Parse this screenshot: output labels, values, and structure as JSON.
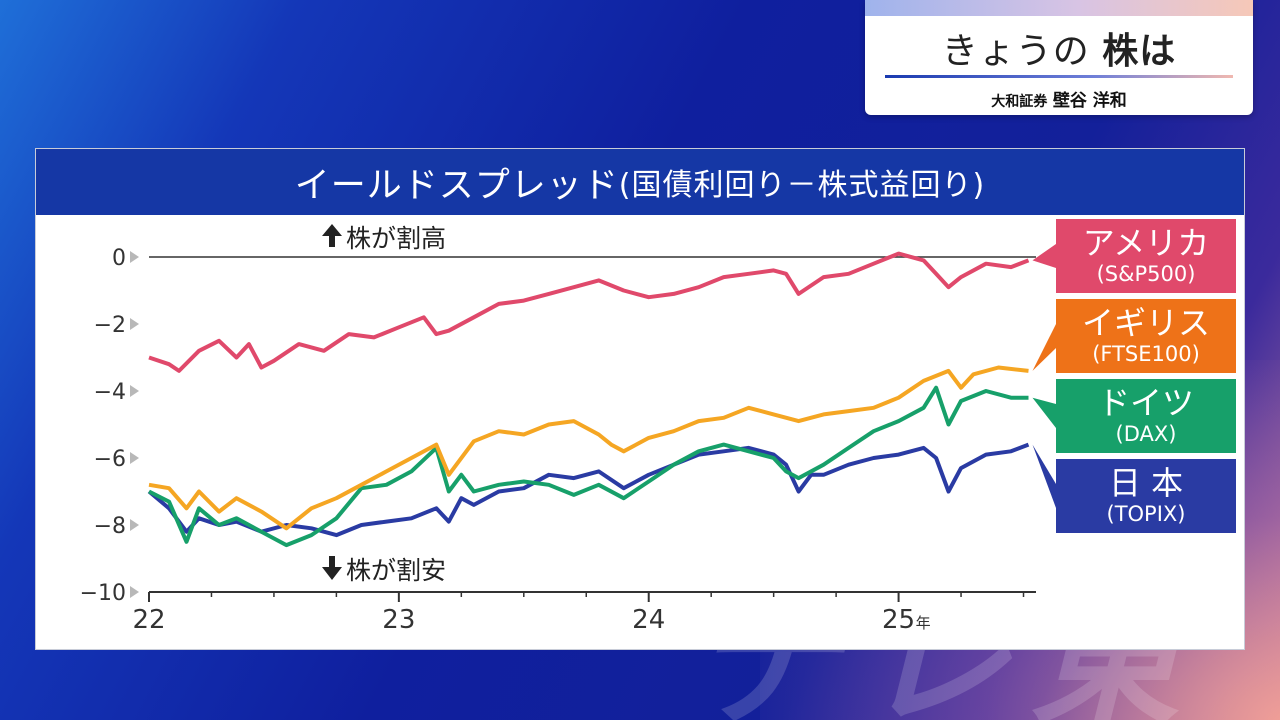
{
  "header": {
    "title_part1": "きょうの",
    "title_part2": "株は",
    "subtitle_company": "大和証券",
    "subtitle_name": "壁谷 洋和"
  },
  "panel": {
    "title": "イールドスプレッド",
    "title_paren": "(国債利回り－株式益回り)"
  },
  "watermark": "テレ東",
  "chart_data": {
    "type": "line",
    "title": "イールドスプレッド(国債利回り－株式益回り)",
    "xlabel": "年",
    "ylabel": "",
    "ylim": [
      -10,
      0
    ],
    "xlim": [
      2022.0,
      2025.55
    ],
    "yticks": [
      0,
      -2,
      -4,
      -6,
      -8,
      -10
    ],
    "ytick_labels": [
      "0",
      "−2",
      "−4",
      "−6",
      "−8",
      "−10"
    ],
    "xticks": [
      2022,
      2023,
      2024,
      2025
    ],
    "xtick_labels": [
      "22",
      "23",
      "24",
      "25"
    ],
    "xtick_unit": "年",
    "annotations": [
      {
        "text": "株が割高",
        "arrow": "up"
      },
      {
        "text": "株が割安",
        "arrow": "down"
      }
    ],
    "legend_placement": "right",
    "grid": false,
    "series": [
      {
        "name": "アメリカ",
        "sub": "(S&P500)",
        "color": "#e0496b",
        "x": [
          2022.0,
          2022.08,
          2022.12,
          2022.2,
          2022.28,
          2022.35,
          2022.4,
          2022.45,
          2022.5,
          2022.6,
          2022.7,
          2022.8,
          2022.9,
          2023.0,
          2023.1,
          2023.15,
          2023.2,
          2023.3,
          2023.4,
          2023.5,
          2023.6,
          2023.7,
          2023.8,
          2023.9,
          2024.0,
          2024.1,
          2024.2,
          2024.3,
          2024.4,
          2024.5,
          2024.55,
          2024.6,
          2024.7,
          2024.8,
          2024.9,
          2025.0,
          2025.1,
          2025.15,
          2025.2,
          2025.25,
          2025.35,
          2025.45,
          2025.52
        ],
        "y": [
          -3.0,
          -3.2,
          -3.4,
          -2.8,
          -2.5,
          -3.0,
          -2.6,
          -3.3,
          -3.1,
          -2.6,
          -2.8,
          -2.3,
          -2.4,
          -2.1,
          -1.8,
          -2.3,
          -2.2,
          -1.8,
          -1.4,
          -1.3,
          -1.1,
          -0.9,
          -0.7,
          -1.0,
          -1.2,
          -1.1,
          -0.9,
          -0.6,
          -0.5,
          -0.4,
          -0.5,
          -1.1,
          -0.6,
          -0.5,
          -0.2,
          0.1,
          -0.1,
          -0.5,
          -0.9,
          -0.6,
          -0.2,
          -0.3,
          -0.1
        ]
      },
      {
        "name": "イギリス",
        "sub": "(FTSE100)",
        "color": "#f5a623",
        "x": [
          2022.0,
          2022.08,
          2022.15,
          2022.2,
          2022.28,
          2022.35,
          2022.45,
          2022.55,
          2022.65,
          2022.75,
          2022.85,
          2022.95,
          2023.05,
          2023.15,
          2023.2,
          2023.3,
          2023.4,
          2023.5,
          2023.6,
          2023.7,
          2023.8,
          2023.85,
          2023.9,
          2024.0,
          2024.1,
          2024.2,
          2024.3,
          2024.4,
          2024.5,
          2024.6,
          2024.7,
          2024.8,
          2024.9,
          2025.0,
          2025.1,
          2025.2,
          2025.25,
          2025.3,
          2025.4,
          2025.52
        ],
        "y": [
          -6.8,
          -6.9,
          -7.5,
          -7.0,
          -7.6,
          -7.2,
          -7.6,
          -8.1,
          -7.5,
          -7.2,
          -6.8,
          -6.4,
          -6.0,
          -5.6,
          -6.5,
          -5.5,
          -5.2,
          -5.3,
          -5.0,
          -4.9,
          -5.3,
          -5.6,
          -5.8,
          -5.4,
          -5.2,
          -4.9,
          -4.8,
          -4.5,
          -4.7,
          -4.9,
          -4.7,
          -4.6,
          -4.5,
          -4.2,
          -3.7,
          -3.4,
          -3.9,
          -3.5,
          -3.3,
          -3.4
        ]
      },
      {
        "name": "ドイツ",
        "sub": "(DAX)",
        "color": "#17a06a",
        "x": [
          2022.0,
          2022.08,
          2022.15,
          2022.2,
          2022.28,
          2022.35,
          2022.45,
          2022.55,
          2022.65,
          2022.75,
          2022.85,
          2022.95,
          2023.05,
          2023.15,
          2023.2,
          2023.25,
          2023.3,
          2023.4,
          2023.5,
          2023.6,
          2023.7,
          2023.8,
          2023.9,
          2024.0,
          2024.1,
          2024.2,
          2024.3,
          2024.4,
          2024.5,
          2024.55,
          2024.6,
          2024.7,
          2024.8,
          2024.9,
          2025.0,
          2025.1,
          2025.15,
          2025.2,
          2025.25,
          2025.35,
          2025.45,
          2025.52
        ],
        "y": [
          -7.0,
          -7.3,
          -8.5,
          -7.5,
          -8.0,
          -7.8,
          -8.2,
          -8.6,
          -8.3,
          -7.8,
          -6.9,
          -6.8,
          -6.4,
          -5.7,
          -7.0,
          -6.5,
          -7.0,
          -6.8,
          -6.7,
          -6.8,
          -7.1,
          -6.8,
          -7.2,
          -6.7,
          -6.2,
          -5.8,
          -5.6,
          -5.8,
          -6.0,
          -6.4,
          -6.6,
          -6.2,
          -5.7,
          -5.2,
          -4.9,
          -4.5,
          -3.9,
          -5.0,
          -4.3,
          -4.0,
          -4.2,
          -4.2
        ]
      },
      {
        "name": "日 本",
        "sub": "(TOPIX)",
        "color": "#2a3ba3",
        "x": [
          2022.0,
          2022.08,
          2022.15,
          2022.2,
          2022.28,
          2022.35,
          2022.45,
          2022.55,
          2022.65,
          2022.75,
          2022.85,
          2022.95,
          2023.05,
          2023.15,
          2023.2,
          2023.25,
          2023.3,
          2023.4,
          2023.5,
          2023.6,
          2023.7,
          2023.8,
          2023.9,
          2024.0,
          2024.1,
          2024.2,
          2024.3,
          2024.4,
          2024.5,
          2024.55,
          2024.6,
          2024.65,
          2024.7,
          2024.8,
          2024.9,
          2025.0,
          2025.1,
          2025.15,
          2025.2,
          2025.25,
          2025.35,
          2025.45,
          2025.52
        ],
        "y": [
          -7.0,
          -7.5,
          -8.2,
          -7.8,
          -8.0,
          -7.9,
          -8.2,
          -8.0,
          -8.1,
          -8.3,
          -8.0,
          -7.9,
          -7.8,
          -7.5,
          -7.9,
          -7.2,
          -7.4,
          -7.0,
          -6.9,
          -6.5,
          -6.6,
          -6.4,
          -6.9,
          -6.5,
          -6.2,
          -5.9,
          -5.8,
          -5.7,
          -5.9,
          -6.2,
          -7.0,
          -6.5,
          -6.5,
          -6.2,
          -6.0,
          -5.9,
          -5.7,
          -6.0,
          -7.0,
          -6.3,
          -5.9,
          -5.8,
          -5.6
        ]
      }
    ]
  },
  "colors": {
    "title_bar": "#1537a5",
    "label_america": "#e0496b",
    "label_uk": "#ee7218",
    "label_germany": "#17a06a",
    "label_japan": "#2a3ba3"
  }
}
